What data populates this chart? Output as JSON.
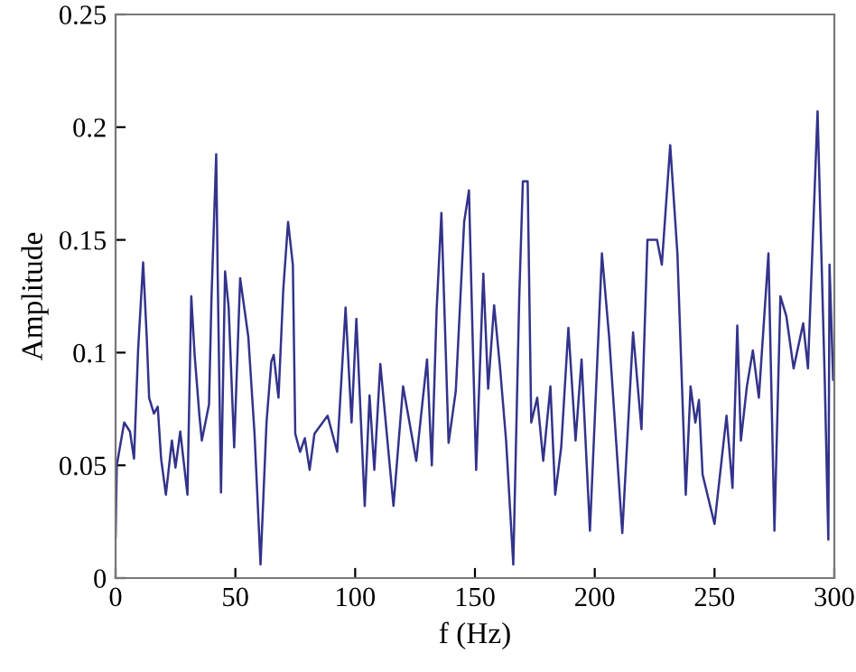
{
  "chart_data": {
    "type": "line",
    "xlabel": "f (Hz)",
    "ylabel": "Amplitude",
    "xlim": [
      0,
      300
    ],
    "xticks": [
      0,
      50,
      100,
      150,
      200,
      250,
      300
    ],
    "ylim": [
      0,
      0.25
    ],
    "yticks": [
      0,
      0.05,
      0.1,
      0.15,
      0.2,
      0.25
    ],
    "grid": false,
    "legend": false,
    "marker": "none",
    "line_style": "solid",
    "series": [
      {
        "color": "#33338c",
        "x": [
          0,
          0.5,
          3.6,
          6,
          7.7,
          9.4,
          11.5,
          13,
          14,
          16,
          17.6,
          19,
          21,
          23.5,
          25,
          27,
          30,
          31.6,
          33,
          35,
          36,
          39,
          40,
          42,
          42.6,
          44,
          45.7,
          47.2,
          49.5,
          52,
          55.4,
          58,
          60.5,
          63,
          65,
          66,
          68,
          70,
          72,
          74,
          75,
          77,
          79,
          81,
          83,
          88.5,
          92.5,
          96,
          98.5,
          100.5,
          104,
          106,
          108,
          110.5,
          116,
          120,
          125.5,
          130,
          132,
          134,
          136,
          139,
          142,
          145.5,
          147.5,
          149,
          150.5,
          153.5,
          155.5,
          158,
          160.5,
          163,
          166,
          168.5,
          170,
          172,
          173.5,
          176,
          178.5,
          181.5,
          183.5,
          186,
          189,
          192,
          194.5,
          198,
          203,
          206,
          211.5,
          216,
          219.5,
          222,
          226,
          228,
          231.5,
          234.5,
          238,
          240,
          242,
          243.5,
          245,
          250,
          255,
          257.5,
          259.5,
          261,
          263.5,
          266,
          268.5,
          272.5,
          275,
          277.5,
          280,
          283,
          287,
          289,
          293,
          296,
          297,
          297.5,
          298,
          299.5
        ],
        "values": [
          0.018,
          0.05,
          0.069,
          0.065,
          0.053,
          0.101,
          0.14,
          0.107,
          0.08,
          0.073,
          0.076,
          0.053,
          0.037,
          0.061,
          0.049,
          0.065,
          0.037,
          0.125,
          0.099,
          0.072,
          0.061,
          0.077,
          0.123,
          0.188,
          0.136,
          0.038,
          0.136,
          0.12,
          0.058,
          0.133,
          0.107,
          0.064,
          0.006,
          0.069,
          0.096,
          0.099,
          0.08,
          0.128,
          0.158,
          0.139,
          0.064,
          0.056,
          0.062,
          0.048,
          0.064,
          0.072,
          0.056,
          0.12,
          0.069,
          0.115,
          0.032,
          0.081,
          0.048,
          0.095,
          0.032,
          0.085,
          0.052,
          0.097,
          0.05,
          0.119,
          0.162,
          0.06,
          0.083,
          0.158,
          0.172,
          0.108,
          0.048,
          0.135,
          0.084,
          0.121,
          0.093,
          0.061,
          0.006,
          0.125,
          0.176,
          0.176,
          0.069,
          0.08,
          0.052,
          0.085,
          0.037,
          0.058,
          0.111,
          0.061,
          0.097,
          0.021,
          0.144,
          0.107,
          0.02,
          0.109,
          0.066,
          0.15,
          0.15,
          0.139,
          0.192,
          0.144,
          0.037,
          0.085,
          0.069,
          0.079,
          0.046,
          0.024,
          0.072,
          0.04,
          0.112,
          0.061,
          0.085,
          0.101,
          0.08,
          0.144,
          0.021,
          0.125,
          0.116,
          0.093,
          0.113,
          0.093,
          0.207,
          0.088,
          0.04,
          0.017,
          0.139,
          0.088
        ]
      }
    ]
  }
}
